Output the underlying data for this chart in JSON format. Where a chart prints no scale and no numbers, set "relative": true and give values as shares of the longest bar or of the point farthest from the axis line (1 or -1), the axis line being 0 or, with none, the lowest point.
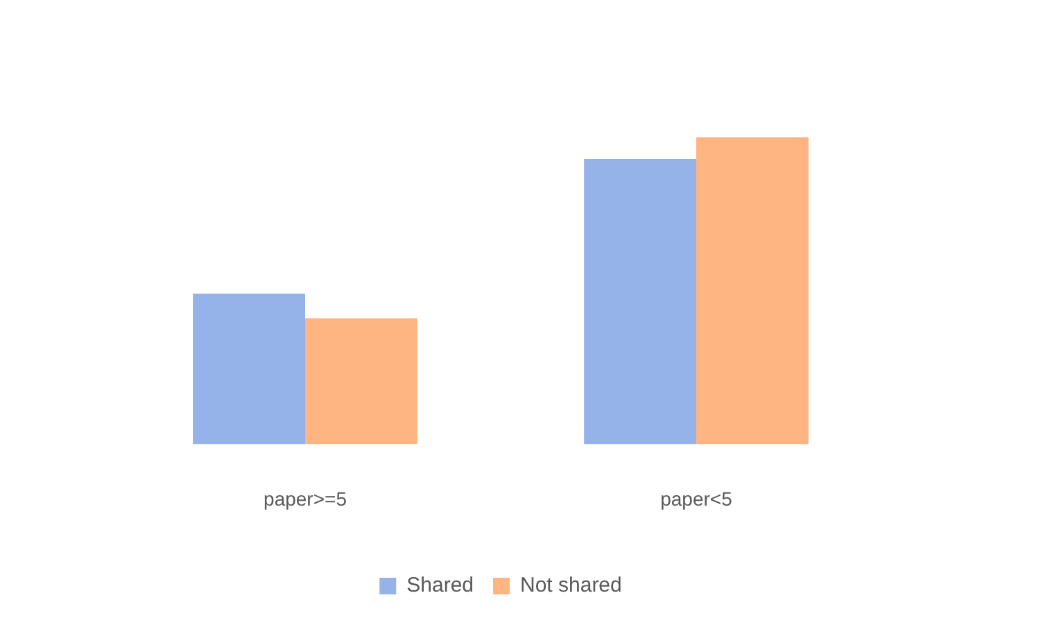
{
  "chart_data": {
    "type": "bar",
    "relative": true,
    "categories": [
      "paper>=5",
      "paper<5"
    ],
    "series": [
      {
        "name": "Shared",
        "color": "#95b3e8",
        "values": [
          0.49,
          0.93
        ]
      },
      {
        "name": "Not shared",
        "color": "#ffb582",
        "values": [
          0.41,
          1
        ]
      }
    ],
    "legend": "bottom",
    "grid": false
  }
}
